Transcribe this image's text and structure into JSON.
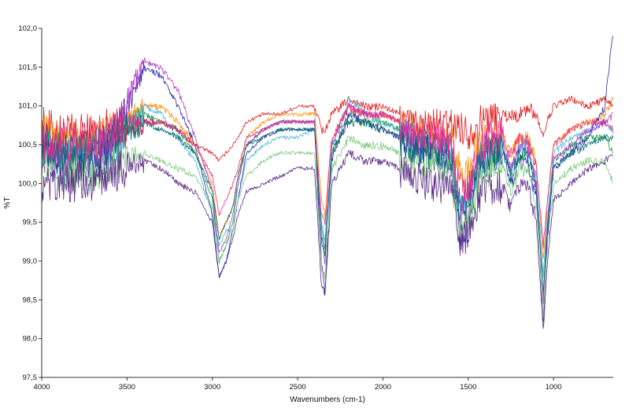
{
  "chart_data": {
    "type": "line",
    "title": "",
    "xlabel": "Wavenumbers (cm-1)",
    "ylabel": "%T",
    "xlim": [
      4000,
      650
    ],
    "ylim": [
      97.5,
      102.0
    ],
    "x_reversed": true,
    "grid": false,
    "legend": "none",
    "x_ticks": [
      {
        "value": 4000,
        "label": "4000"
      },
      {
        "value": 3500,
        "label": "3500"
      },
      {
        "value": 3000,
        "label": "3000"
      },
      {
        "value": 2500,
        "label": "2500"
      },
      {
        "value": 2000,
        "label": "2000"
      },
      {
        "value": 1500,
        "label": "1500"
      },
      {
        "value": 1000,
        "label": "1000"
      }
    ],
    "y_ticks": [
      {
        "value": 97.5,
        "label": "97,5"
      },
      {
        "value": 98.0,
        "label": "98,0"
      },
      {
        "value": 98.5,
        "label": "98,5"
      },
      {
        "value": 99.0,
        "label": "99,0"
      },
      {
        "value": 99.5,
        "label": "99,5"
      },
      {
        "value": 100.0,
        "label": "100,0"
      },
      {
        "value": 100.5,
        "label": "100,5"
      },
      {
        "value": 101.0,
        "label": "101,0"
      },
      {
        "value": 101.5,
        "label": "101,5"
      },
      {
        "value": 102.0,
        "label": "102,0"
      }
    ],
    "x": [
      4000,
      3900,
      3800,
      3700,
      3600,
      3500,
      3400,
      3300,
      3200,
      3100,
      3000,
      2960,
      2920,
      2880,
      2850,
      2800,
      2700,
      2600,
      2500,
      2400,
      2360,
      2340,
      2300,
      2200,
      2100,
      2000,
      1900,
      1800,
      1700,
      1600,
      1550,
      1500,
      1450,
      1400,
      1300,
      1250,
      1200,
      1150,
      1100,
      1060,
      1040,
      1000,
      900,
      800,
      700,
      650
    ],
    "series": [
      {
        "color": "#e41a1c",
        "values": [
          100.8,
          100.7,
          100.7,
          100.7,
          100.8,
          100.8,
          100.8,
          100.8,
          100.7,
          100.5,
          100.4,
          100.3,
          100.4,
          100.5,
          100.6,
          100.8,
          100.9,
          100.9,
          101.0,
          101.0,
          100.7,
          100.7,
          100.9,
          101.1,
          101.0,
          101.0,
          100.9,
          100.8,
          100.8,
          100.8,
          100.8,
          100.7,
          100.8,
          100.9,
          100.9,
          100.9,
          100.9,
          101.0,
          100.9,
          100.6,
          100.8,
          101.0,
          101.1,
          101.0,
          101.1,
          101.0
        ]
      },
      {
        "color": "#ff8c00",
        "values": [
          100.7,
          100.6,
          100.6,
          100.6,
          100.7,
          100.9,
          101.0,
          101.0,
          100.8,
          100.5,
          100.0,
          99.3,
          99.5,
          99.7,
          100.1,
          100.6,
          100.8,
          100.9,
          100.9,
          100.9,
          99.8,
          99.6,
          100.6,
          101.0,
          100.9,
          100.9,
          100.8,
          100.7,
          100.6,
          100.6,
          100.2,
          100.2,
          100.5,
          100.6,
          100.6,
          100.4,
          100.6,
          100.6,
          100.3,
          99.0,
          99.7,
          100.5,
          100.7,
          100.8,
          100.9,
          101.1
        ]
      },
      {
        "color": "#1a9850",
        "values": [
          100.6,
          100.5,
          100.5,
          100.5,
          100.6,
          100.8,
          100.9,
          100.8,
          100.7,
          100.4,
          99.8,
          99.0,
          99.2,
          99.5,
          100.0,
          100.5,
          100.7,
          100.8,
          100.8,
          100.8,
          99.4,
          99.2,
          100.4,
          100.9,
          100.8,
          100.8,
          100.7,
          100.6,
          100.5,
          100.5,
          99.8,
          99.9,
          100.3,
          100.5,
          100.5,
          100.2,
          100.4,
          100.4,
          100.0,
          98.6,
          99.4,
          100.3,
          100.5,
          100.6,
          100.6,
          100.4
        ]
      },
      {
        "color": "#41b6e6",
        "values": [
          100.5,
          100.4,
          100.4,
          100.4,
          100.5,
          100.7,
          101.0,
          100.9,
          100.6,
          100.3,
          99.6,
          99.2,
          99.4,
          99.4,
          99.8,
          100.3,
          100.5,
          100.6,
          100.6,
          100.7,
          99.5,
          99.3,
          100.5,
          101.1,
          100.9,
          100.8,
          100.7,
          100.6,
          100.5,
          100.4,
          99.7,
          99.8,
          100.2,
          100.4,
          100.5,
          100.2,
          100.5,
          100.5,
          100.1,
          98.8,
          99.5,
          100.4,
          100.6,
          100.7,
          100.8,
          100.7
        ]
      },
      {
        "color": "#2c2ca8",
        "values": [
          100.4,
          100.3,
          100.3,
          100.3,
          100.5,
          101.0,
          101.5,
          101.4,
          101.0,
          100.5,
          99.6,
          98.8,
          99.0,
          99.4,
          99.8,
          100.4,
          100.6,
          100.7,
          100.7,
          100.7,
          99.0,
          98.6,
          100.3,
          100.9,
          100.8,
          100.7,
          100.6,
          100.5,
          100.4,
          100.3,
          99.4,
          99.5,
          100.1,
          100.3,
          100.4,
          100.0,
          100.3,
          100.3,
          99.8,
          98.2,
          99.2,
          100.2,
          100.4,
          100.6,
          101.0,
          102.0
        ]
      },
      {
        "color": "#b03cc8",
        "values": [
          100.5,
          100.4,
          100.4,
          100.4,
          100.6,
          101.1,
          101.6,
          101.5,
          101.2,
          100.6,
          99.9,
          99.1,
          99.3,
          99.6,
          100.0,
          100.5,
          100.7,
          100.8,
          100.8,
          100.8,
          99.3,
          99.0,
          100.5,
          101.0,
          100.9,
          100.9,
          100.8,
          100.6,
          100.6,
          100.5,
          99.7,
          99.8,
          100.3,
          100.5,
          100.6,
          100.2,
          100.5,
          100.5,
          100.0,
          98.5,
          99.4,
          100.3,
          100.5,
          100.7,
          100.8,
          100.9
        ]
      },
      {
        "color": "#7fc97f",
        "values": [
          100.3,
          100.2,
          100.2,
          100.2,
          100.3,
          100.4,
          100.4,
          100.3,
          100.2,
          100.1,
          99.7,
          99.0,
          99.2,
          99.4,
          99.8,
          100.1,
          100.3,
          100.4,
          100.4,
          100.4,
          98.9,
          98.8,
          100.2,
          100.6,
          100.5,
          100.5,
          100.4,
          100.3,
          100.3,
          100.2,
          99.4,
          99.5,
          100.0,
          100.2,
          100.3,
          99.9,
          100.2,
          100.2,
          99.7,
          98.3,
          99.1,
          100.0,
          100.2,
          100.3,
          100.3,
          100.0
        ]
      },
      {
        "color": "#006d6f",
        "values": [
          100.6,
          100.5,
          100.5,
          100.5,
          100.6,
          100.7,
          100.8,
          100.7,
          100.6,
          100.4,
          99.9,
          99.3,
          99.5,
          99.7,
          100.1,
          100.5,
          100.6,
          100.7,
          100.7,
          100.7,
          99.3,
          99.1,
          100.4,
          100.8,
          100.8,
          100.7,
          100.6,
          100.5,
          100.5,
          100.4,
          99.7,
          99.8,
          100.2,
          100.4,
          100.5,
          100.1,
          100.4,
          100.4,
          99.9,
          98.6,
          99.3,
          100.2,
          100.4,
          100.5,
          100.6,
          100.6
        ]
      },
      {
        "color": "#5b2a86",
        "values": [
          100.0,
          100.0,
          100.1,
          100.1,
          100.2,
          100.3,
          100.3,
          100.2,
          100.0,
          99.9,
          99.5,
          98.8,
          99.0,
          99.3,
          99.6,
          99.9,
          100.0,
          100.1,
          100.2,
          100.2,
          98.7,
          98.6,
          100.0,
          100.4,
          100.3,
          100.3,
          100.2,
          100.1,
          100.0,
          100.0,
          99.3,
          99.4,
          99.8,
          100.0,
          100.0,
          99.7,
          100.0,
          100.0,
          99.5,
          98.1,
          98.9,
          99.8,
          100.0,
          100.2,
          100.3,
          100.4
        ]
      },
      {
        "color": "#e7298a",
        "values": [
          100.6,
          100.6,
          100.6,
          100.6,
          100.7,
          100.8,
          100.8,
          100.8,
          100.7,
          100.5,
          100.1,
          99.6,
          99.8,
          100.0,
          100.2,
          100.6,
          100.7,
          100.8,
          100.8,
          100.8,
          99.6,
          99.5,
          100.6,
          101.0,
          100.9,
          100.9,
          100.8,
          100.7,
          100.7,
          100.6,
          100.0,
          100.0,
          100.4,
          100.6,
          100.7,
          100.4,
          100.6,
          100.6,
          100.2,
          99.2,
          99.7,
          100.5,
          100.7,
          100.8,
          100.8,
          100.7
        ]
      }
    ]
  }
}
